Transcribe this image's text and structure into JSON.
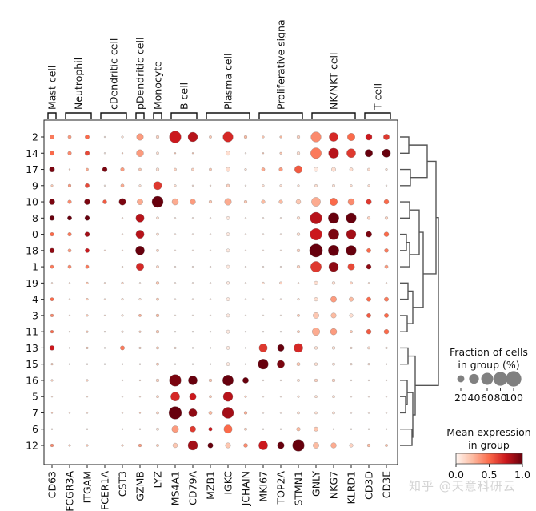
{
  "chart_data": {
    "type": "dotplot",
    "title": "",
    "genes": [
      "CD63",
      "FCGR3A",
      "ITGAM",
      "FCER1A",
      "CST3",
      "GZMB",
      "LYZ",
      "MS4A1",
      "CD79A",
      "MZB1",
      "IGKC",
      "JCHAIN",
      "MKI67",
      "TOP2A",
      "STMN1",
      "GNLY",
      "NKG7",
      "KLRD1",
      "CD3D",
      "CD3E"
    ],
    "groups": [
      "2",
      "14",
      "17",
      "9",
      "10",
      "8",
      "0",
      "18",
      "1",
      "19",
      "4",
      "3",
      "11",
      "13",
      "15",
      "16",
      "5",
      "7",
      "6",
      "12"
    ],
    "gene_groups": [
      {
        "label": "Mast cell",
        "start": 0,
        "end": 0
      },
      {
        "label": "Neutrophil",
        "start": 1,
        "end": 2
      },
      {
        "label": "cDendritic cell",
        "start": 3,
        "end": 4
      },
      {
        "label": "pDendritic cell",
        "start": 5,
        "end": 5
      },
      {
        "label": "Monocyte",
        "start": 6,
        "end": 6
      },
      {
        "label": "B cell",
        "start": 7,
        "end": 8
      },
      {
        "label": "Plasma cell",
        "start": 9,
        "end": 11
      },
      {
        "label": "Proliferative signa",
        "start": 12,
        "end": 14
      },
      {
        "label": "NK/NKT cell",
        "start": 15,
        "end": 17
      },
      {
        "label": "T cell",
        "start": 18,
        "end": 19
      }
    ],
    "fraction_in_group_pct": [
      [
        8,
        5,
        8,
        1,
        2,
        20,
        4,
        60,
        40,
        3,
        45,
        4,
        2,
        2,
        4,
        45,
        35,
        25,
        18,
        15
      ],
      [
        8,
        6,
        9,
        1,
        1,
        22,
        3,
        1,
        1,
        0,
        8,
        1,
        1,
        2,
        4,
        50,
        45,
        35,
        25,
        30
      ],
      [
        12,
        1,
        3,
        10,
        6,
        3,
        4,
        3,
        3,
        3,
        8,
        2,
        5,
        6,
        25,
        8,
        8,
        5,
        3,
        2
      ],
      [
        2,
        4,
        8,
        1,
        5,
        2,
        30,
        2,
        1,
        1,
        4,
        1,
        2,
        2,
        2,
        3,
        3,
        2,
        2,
        1
      ],
      [
        14,
        6,
        14,
        7,
        20,
        15,
        55,
        18,
        13,
        4,
        20,
        4,
        6,
        6,
        10,
        35,
        25,
        18,
        12,
        10
      ],
      [
        10,
        8,
        10,
        0,
        1,
        30,
        3,
        1,
        1,
        1,
        5,
        1,
        1,
        1,
        4,
        60,
        50,
        45,
        4,
        4
      ],
      [
        6,
        6,
        10,
        0,
        1,
        30,
        3,
        1,
        1,
        1,
        5,
        1,
        1,
        1,
        4,
        60,
        50,
        40,
        15,
        10
      ],
      [
        10,
        5,
        8,
        1,
        1,
        35,
        3,
        1,
        1,
        1,
        5,
        1,
        1,
        1,
        4,
        75,
        50,
        45,
        8,
        7
      ],
      [
        5,
        5,
        5,
        0,
        1,
        25,
        3,
        1,
        1,
        1,
        5,
        1,
        1,
        1,
        4,
        50,
        40,
        20,
        10,
        5
      ],
      [
        1,
        1,
        2,
        1,
        2,
        1,
        4,
        1,
        1,
        1,
        4,
        1,
        2,
        3,
        1,
        6,
        4,
        3,
        1,
        1
      ],
      [
        5,
        1,
        2,
        1,
        2,
        2,
        3,
        1,
        1,
        1,
        5,
        1,
        1,
        1,
        2,
        6,
        15,
        8,
        8,
        8
      ],
      [
        4,
        1,
        2,
        1,
        2,
        3,
        4,
        1,
        1,
        1,
        5,
        1,
        1,
        1,
        3,
        15,
        12,
        6,
        8,
        8
      ],
      [
        4,
        1,
        2,
        1,
        2,
        2,
        4,
        1,
        1,
        1,
        5,
        1,
        1,
        1,
        3,
        25,
        18,
        3,
        10,
        10
      ],
      [
        10,
        1,
        2,
        1,
        8,
        2,
        3,
        2,
        1,
        1,
        5,
        1,
        30,
        20,
        35,
        4,
        4,
        2,
        3,
        2
      ],
      [
        2,
        1,
        1,
        1,
        1,
        1,
        3,
        1,
        1,
        1,
        5,
        1,
        45,
        25,
        5,
        4,
        3,
        2,
        2,
        1
      ],
      [
        2,
        0,
        2,
        0,
        1,
        1,
        4,
        60,
        35,
        4,
        50,
        15,
        1,
        1,
        3,
        4,
        4,
        1,
        1,
        1
      ],
      [
        1,
        0,
        1,
        0,
        1,
        1,
        3,
        35,
        20,
        3,
        40,
        2,
        1,
        1,
        2,
        3,
        3,
        1,
        1,
        1
      ],
      [
        1,
        1,
        1,
        0,
        1,
        1,
        3,
        70,
        30,
        5,
        55,
        4,
        1,
        1,
        3,
        3,
        3,
        1,
        1,
        1
      ],
      [
        1,
        0,
        1,
        0,
        1,
        1,
        3,
        20,
        15,
        6,
        30,
        3,
        1,
        1,
        6,
        8,
        1,
        1,
        1,
        1
      ],
      [
        4,
        2,
        2,
        0,
        2,
        4,
        3,
        10,
        40,
        12,
        12,
        7,
        35,
        20,
        60,
        15,
        13,
        6,
        4,
        3
      ]
    ],
    "mean_expression": [
      [
        0.45,
        0.35,
        0.5,
        0.05,
        0.1,
        0.35,
        0.15,
        0.75,
        0.8,
        0.2,
        0.7,
        0.25,
        0.2,
        0.25,
        0.15,
        0.4,
        0.7,
        0.5,
        0.75,
        0.65
      ],
      [
        0.5,
        0.4,
        0.6,
        0.05,
        0.2,
        0.35,
        0.1,
        0.2,
        0.2,
        0,
        0.1,
        0.05,
        0.2,
        0.2,
        0.1,
        0.45,
        0.8,
        0.65,
        1.0,
        1.0
      ],
      [
        0.95,
        0.2,
        0.3,
        0.95,
        0.35,
        0.2,
        0.1,
        0.15,
        0.15,
        0.2,
        0.1,
        0.1,
        0.3,
        0.35,
        0.55,
        0.05,
        0.1,
        0.1,
        0.1,
        0.1
      ],
      [
        0.2,
        0.35,
        0.6,
        0.05,
        0.3,
        0.1,
        0.65,
        0.1,
        0.1,
        0.1,
        0.15,
        0.05,
        0.1,
        0.1,
        0.1,
        0.1,
        0.1,
        0.1,
        0.1,
        0.05
      ],
      [
        0.95,
        0.4,
        0.95,
        0.55,
        0.95,
        0.3,
        1.0,
        0.3,
        0.35,
        0.2,
        0.3,
        0.2,
        0.25,
        0.25,
        0.2,
        0.3,
        0.5,
        0.4,
        0.65,
        0.5
      ],
      [
        1.0,
        1.0,
        1.0,
        0,
        0.1,
        0.8,
        0.1,
        0.05,
        0.05,
        0.05,
        0.05,
        0.05,
        0.05,
        0.05,
        0.1,
        0.8,
        1.0,
        1.0,
        0.15,
        0.15
      ],
      [
        0.5,
        0.45,
        0.85,
        0,
        0.1,
        0.8,
        0.1,
        0.05,
        0.05,
        0.05,
        0.05,
        0.05,
        0.05,
        0.05,
        0.1,
        0.75,
        0.95,
        0.85,
        0.95,
        0.5
      ],
      [
        0.9,
        0.35,
        0.75,
        0.1,
        0.1,
        1.0,
        0.15,
        0.05,
        0.05,
        0.05,
        0.05,
        0.05,
        0.05,
        0.05,
        0.15,
        1.0,
        1.0,
        1.0,
        0.5,
        0.45
      ],
      [
        0.45,
        0.4,
        0.45,
        0,
        0.1,
        0.7,
        0.15,
        0.05,
        0.05,
        0.05,
        0.05,
        0.05,
        0.05,
        0.05,
        0.15,
        0.65,
        0.9,
        0.6,
        0.9,
        0.35
      ],
      [
        0.1,
        0.1,
        0.2,
        0.1,
        0.15,
        0.05,
        0.2,
        0.05,
        0.05,
        0.05,
        0.05,
        0.05,
        0.1,
        0.15,
        0.1,
        0.1,
        0.1,
        0.15,
        0.1,
        0.1
      ],
      [
        0.5,
        0.1,
        0.2,
        0.1,
        0.1,
        0.1,
        0.2,
        0.05,
        0.05,
        0.05,
        0.05,
        0.05,
        0.05,
        0.05,
        0.1,
        0.1,
        0.35,
        0.25,
        0.5,
        0.45
      ],
      [
        0.4,
        0.1,
        0.2,
        0.1,
        0.1,
        0.3,
        0.25,
        0.05,
        0.05,
        0.05,
        0.05,
        0.05,
        0.05,
        0.05,
        0.2,
        0.2,
        0.25,
        0.1,
        0.55,
        0.5
      ],
      [
        0.5,
        0.1,
        0.2,
        0.1,
        0.1,
        0.2,
        0.2,
        0.05,
        0.05,
        0.05,
        0.05,
        0.05,
        0.05,
        0.05,
        0.2,
        0.3,
        0.35,
        0.2,
        0.55,
        0.5
      ],
      [
        0.75,
        0.1,
        0.2,
        0.1,
        0.45,
        0.15,
        0.2,
        0.1,
        0.1,
        0.1,
        0.05,
        0.05,
        0.65,
        1.0,
        0.7,
        0.1,
        0.1,
        0.1,
        0.1,
        0.1
      ],
      [
        0.2,
        0.05,
        0.1,
        0.05,
        0.1,
        0.1,
        0.2,
        0.05,
        0.05,
        0.05,
        0.05,
        0.05,
        1.0,
        0.95,
        0.2,
        0.1,
        0.1,
        0.1,
        0.1,
        0.1
      ],
      [
        0.15,
        0,
        0.15,
        0,
        0.05,
        0.1,
        0.15,
        0.95,
        1.0,
        0.2,
        1.0,
        1.0,
        0.05,
        0.05,
        0.1,
        0.15,
        0.15,
        0.05,
        0.05,
        0.05
      ],
      [
        0.1,
        0,
        0.1,
        0,
        0.05,
        0.1,
        0.15,
        0.7,
        0.75,
        0.2,
        0.8,
        0.2,
        0.05,
        0.05,
        0.1,
        0.1,
        0.1,
        0.05,
        0.05,
        0.05
      ],
      [
        0.2,
        0.1,
        0.1,
        0,
        0.1,
        0.2,
        0.15,
        1.0,
        0.9,
        0.25,
        0.85,
        0.3,
        0.05,
        0.05,
        0.1,
        0.1,
        0.1,
        0.05,
        0.05,
        0.05
      ],
      [
        0.1,
        0,
        0.1,
        0,
        0.1,
        0.1,
        0.1,
        0.35,
        0.65,
        0.75,
        0.5,
        0.2,
        0.05,
        0.05,
        0.25,
        0.2,
        0.05,
        0.05,
        0.05,
        0.05
      ],
      [
        0.4,
        0.2,
        0.2,
        0,
        0.2,
        0.35,
        0.2,
        0.2,
        0.85,
        1.0,
        0.2,
        0.4,
        0.75,
        1.0,
        1.0,
        0.25,
        0.3,
        0.15,
        0.25,
        0.25
      ]
    ],
    "size_legend": {
      "title_line1": "Fraction of cells",
      "title_line2": "in group (%)",
      "values": [
        20,
        40,
        60,
        80,
        100
      ],
      "labels": [
        "20",
        "40",
        "60",
        "80",
        "100"
      ]
    },
    "color_legend": {
      "title_line1": "Mean expression",
      "title_line2": "in group",
      "vmin": 0.0,
      "vmax": 1.0,
      "ticks": [
        "0.0",
        "0.5",
        "1.0"
      ],
      "colormap": "Reds",
      "stops": [
        "#fff5f0",
        "#fcbba1",
        "#fb6a4a",
        "#cb181d",
        "#67000d"
      ]
    },
    "dendrogram": {
      "leaf_order": [
        "2",
        "14",
        "17",
        "9",
        "10",
        "8",
        "0",
        "18",
        "1",
        "19",
        "4",
        "3",
        "11",
        "13",
        "15",
        "16",
        "5",
        "7",
        "6",
        "12"
      ],
      "orientation": "right"
    },
    "grid": false
  },
  "watermark": "知乎 @天意科研云"
}
